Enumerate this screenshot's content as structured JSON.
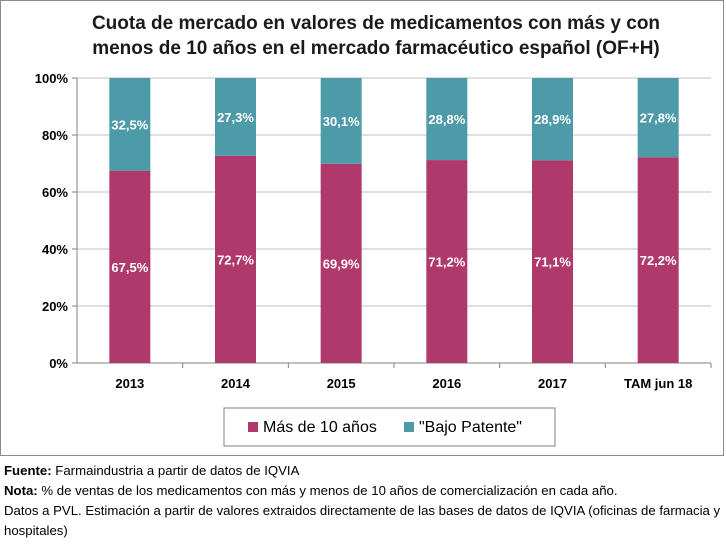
{
  "chart_data": {
    "type": "bar",
    "stacked": true,
    "title_lines": [
      "Cuota de mercado en valores de medicamentos con más y con",
      "menos de 10 años en el mercado farmacéutico español (OF+H)"
    ],
    "categories": [
      "2013",
      "2014",
      "2015",
      "2016",
      "2017",
      "TAM jun 18"
    ],
    "series": [
      {
        "name": "Más de 10 años",
        "values": [
          67.5,
          72.7,
          69.9,
          71.2,
          71.1,
          72.2
        ],
        "labels": [
          "67,5%",
          "72,7%",
          "69,9%",
          "71,2%",
          "71,1%",
          "72,2%"
        ],
        "color": "#b0396b"
      },
      {
        "name": "\"Bajo Patente\"",
        "values": [
          32.5,
          27.3,
          30.1,
          28.8,
          28.9,
          27.8
        ],
        "labels": [
          "32,5%",
          "27,3%",
          "30,1%",
          "28,8%",
          "28,9%",
          "27,8%"
        ],
        "color": "#4d9aa8"
      }
    ],
    "yticks": [
      "0%",
      "20%",
      "40%",
      "60%",
      "80%",
      "100%"
    ],
    "ylim": [
      0,
      100
    ],
    "grid": true,
    "legend_position": "bottom"
  },
  "notes": {
    "source_label": "Fuente:",
    "source_text": "Farmaindustria a partir de datos de IQVIA",
    "note_label": "Nota:",
    "note_text": "% de ventas de los medicamentos con más y menos de 10 años de comercialización en cada año.",
    "data_text": "Datos a PVL. Estimación a partir de valores extraidos directamente de las bases de datos de IQVIA (oficinas de farmacia y hospitales)"
  }
}
